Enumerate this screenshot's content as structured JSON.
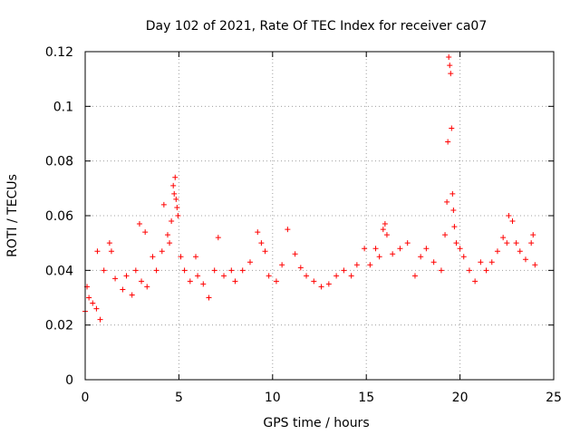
{
  "chart_data": {
    "type": "scatter",
    "title": "Day 102 of 2021, Rate Of TEC Index for receiver ca07",
    "xlabel": "GPS time / hours",
    "ylabel": "ROTI / TECUs",
    "xlim": [
      0,
      25
    ],
    "ylim": [
      0,
      0.12
    ],
    "x_ticks": [
      0,
      5,
      10,
      15,
      20,
      25
    ],
    "x_tick_labels": [
      "0",
      "5",
      "10",
      "15",
      "20",
      "25"
    ],
    "y_ticks": [
      0,
      0.02,
      0.04,
      0.06,
      0.08,
      0.1,
      0.12
    ],
    "y_tick_labels": [
      "0",
      "0.02",
      "0.04",
      "0.06",
      "0.08",
      "0.1",
      "0.12"
    ],
    "grid": true,
    "marker": "+",
    "series_color": "#ff0000",
    "series": [
      {
        "name": "ROTI",
        "points": [
          [
            0.0,
            0.025
          ],
          [
            0.1,
            0.034
          ],
          [
            0.2,
            0.03
          ],
          [
            0.4,
            0.028
          ],
          [
            0.6,
            0.026
          ],
          [
            0.8,
            0.022
          ],
          [
            0.65,
            0.047
          ],
          [
            1.0,
            0.04
          ],
          [
            1.3,
            0.05
          ],
          [
            1.4,
            0.047
          ],
          [
            1.6,
            0.037
          ],
          [
            2.0,
            0.033
          ],
          [
            2.2,
            0.038
          ],
          [
            2.5,
            0.031
          ],
          [
            2.7,
            0.04
          ],
          [
            2.9,
            0.057
          ],
          [
            3.0,
            0.036
          ],
          [
            3.2,
            0.054
          ],
          [
            3.3,
            0.034
          ],
          [
            3.6,
            0.045
          ],
          [
            3.8,
            0.04
          ],
          [
            4.1,
            0.047
          ],
          [
            4.2,
            0.064
          ],
          [
            4.4,
            0.053
          ],
          [
            4.5,
            0.05
          ],
          [
            4.6,
            0.058
          ],
          [
            4.7,
            0.071
          ],
          [
            4.75,
            0.068
          ],
          [
            4.8,
            0.074
          ],
          [
            4.85,
            0.066
          ],
          [
            4.9,
            0.063
          ],
          [
            4.95,
            0.06
          ],
          [
            5.1,
            0.045
          ],
          [
            5.3,
            0.04
          ],
          [
            5.6,
            0.036
          ],
          [
            5.9,
            0.045
          ],
          [
            6.0,
            0.038
          ],
          [
            6.3,
            0.035
          ],
          [
            6.6,
            0.03
          ],
          [
            6.9,
            0.04
          ],
          [
            7.1,
            0.052
          ],
          [
            7.4,
            0.038
          ],
          [
            7.8,
            0.04
          ],
          [
            8.0,
            0.036
          ],
          [
            8.4,
            0.04
          ],
          [
            8.8,
            0.043
          ],
          [
            9.2,
            0.054
          ],
          [
            9.4,
            0.05
          ],
          [
            9.6,
            0.047
          ],
          [
            9.8,
            0.038
          ],
          [
            10.2,
            0.036
          ],
          [
            10.5,
            0.042
          ],
          [
            10.8,
            0.055
          ],
          [
            11.2,
            0.046
          ],
          [
            11.5,
            0.041
          ],
          [
            11.8,
            0.038
          ],
          [
            12.2,
            0.036
          ],
          [
            12.6,
            0.034
          ],
          [
            13.0,
            0.035
          ],
          [
            13.4,
            0.038
          ],
          [
            13.8,
            0.04
          ],
          [
            14.2,
            0.038
          ],
          [
            14.5,
            0.042
          ],
          [
            14.9,
            0.048
          ],
          [
            15.2,
            0.042
          ],
          [
            15.5,
            0.048
          ],
          [
            15.7,
            0.045
          ],
          [
            15.9,
            0.055
          ],
          [
            16.0,
            0.057
          ],
          [
            16.1,
            0.053
          ],
          [
            16.4,
            0.046
          ],
          [
            16.8,
            0.048
          ],
          [
            17.2,
            0.05
          ],
          [
            17.6,
            0.038
          ],
          [
            17.9,
            0.045
          ],
          [
            18.2,
            0.048
          ],
          [
            18.6,
            0.043
          ],
          [
            19.0,
            0.04
          ],
          [
            19.2,
            0.053
          ],
          [
            19.3,
            0.065
          ],
          [
            19.35,
            0.087
          ],
          [
            19.4,
            0.118
          ],
          [
            19.45,
            0.115
          ],
          [
            19.5,
            0.112
          ],
          [
            19.55,
            0.092
          ],
          [
            19.6,
            0.068
          ],
          [
            19.65,
            0.062
          ],
          [
            19.7,
            0.056
          ],
          [
            19.8,
            0.05
          ],
          [
            20.0,
            0.048
          ],
          [
            20.2,
            0.045
          ],
          [
            20.5,
            0.04
          ],
          [
            20.8,
            0.036
          ],
          [
            21.1,
            0.043
          ],
          [
            21.4,
            0.04
          ],
          [
            21.7,
            0.043
          ],
          [
            22.0,
            0.047
          ],
          [
            22.3,
            0.052
          ],
          [
            22.5,
            0.05
          ],
          [
            22.6,
            0.06
          ],
          [
            22.8,
            0.058
          ],
          [
            23.0,
            0.05
          ],
          [
            23.2,
            0.047
          ],
          [
            23.5,
            0.044
          ],
          [
            23.8,
            0.05
          ],
          [
            23.9,
            0.053
          ],
          [
            24.0,
            0.042
          ]
        ]
      }
    ]
  }
}
